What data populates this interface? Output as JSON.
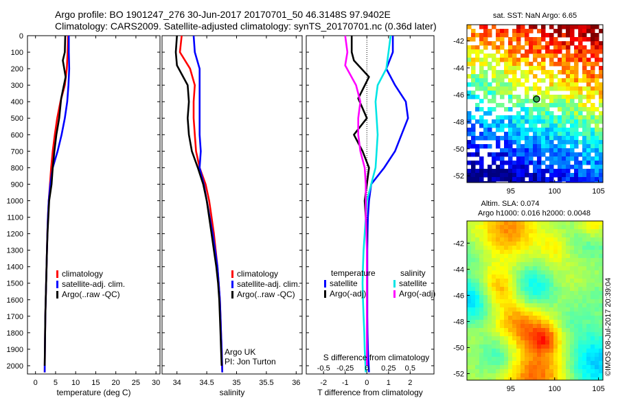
{
  "header": {
    "title_line1": "Argo profile: BO 1901247_276 30-Jun-2017 20170701_50 46.3148S 97.9402E",
    "title_line2": "Climatology: CARS2009. Satellite-adjusted climatology: synTS_20170701.nc (0.36d later)"
  },
  "colors": {
    "climatology": "#ff0000",
    "satellite": "#0000ff",
    "argo": "#000000",
    "sal_satellite": "#00e5e5",
    "sal_argo": "#ff00ff"
  },
  "chart_data": [
    {
      "type": "line",
      "name": "temperature-profile",
      "xlabel": "temperature (deg C)",
      "ylabel": "",
      "xlim": [
        -2,
        31
      ],
      "ylim": [
        2050,
        0
      ],
      "xticks": [
        0,
        5,
        10,
        15,
        20,
        25,
        30
      ],
      "yticks": [
        0,
        100,
        200,
        300,
        400,
        500,
        600,
        700,
        800,
        900,
        1000,
        1100,
        1200,
        1300,
        1400,
        1500,
        1600,
        1700,
        1800,
        1900,
        2000
      ],
      "legend": [
        "climatology",
        "satellite-adj. clim.",
        "Argo(..raw -QC)"
      ],
      "legend_position": "lower-middle",
      "series": [
        {
          "name": "climatology",
          "color": "#ff0000",
          "x": [
            8.1,
            8.0,
            7.8,
            7.3,
            6.2,
            5.4,
            4.8,
            4.3,
            3.9,
            3.6,
            3.3,
            3.1,
            2.95,
            2.85,
            2.75,
            2.65,
            2.55,
            2.45,
            2.4,
            2.35,
            2.3
          ],
          "y": [
            0,
            100,
            200,
            300,
            400,
            500,
            600,
            700,
            800,
            900,
            1000,
            1100,
            1200,
            1300,
            1400,
            1500,
            1600,
            1700,
            1800,
            1900,
            2040
          ]
        },
        {
          "name": "satellite-adj. clim.",
          "color": "#0000ff",
          "x": [
            8.3,
            8.3,
            8.4,
            8.2,
            7.9,
            7.3,
            6.5,
            5.5,
            4.3,
            3.7,
            3.3,
            3.1,
            2.95,
            2.85,
            2.75,
            2.65,
            2.55,
            2.45,
            2.4,
            2.35,
            2.3
          ],
          "y": [
            0,
            100,
            200,
            300,
            400,
            500,
            600,
            700,
            800,
            900,
            1000,
            1100,
            1200,
            1300,
            1400,
            1500,
            1600,
            1700,
            1800,
            1900,
            2040
          ]
        },
        {
          "name": "Argo(..raw -QC)",
          "color": "#000000",
          "x": [
            7.4,
            7.3,
            6.8,
            7.5,
            6.4,
            5.9,
            5.2,
            4.7,
            4.3,
            4.0,
            3.4,
            3.2,
            3.0,
            2.85,
            2.75,
            2.65,
            2.55,
            2.45,
            2.4,
            2.35,
            2.3
          ],
          "y": [
            0,
            100,
            150,
            250,
            380,
            500,
            600,
            700,
            800,
            900,
            1000,
            1100,
            1200,
            1300,
            1400,
            1500,
            1600,
            1700,
            1800,
            1900,
            2000
          ]
        }
      ]
    },
    {
      "type": "line",
      "name": "salinity-profile",
      "xlabel": "salinity",
      "ylabel": "",
      "xlim": [
        33.75,
        36.1
      ],
      "ylim": [
        2050,
        0
      ],
      "xticks": [
        34,
        34.5,
        35,
        35.5,
        36
      ],
      "legend": [
        "climatology",
        "satellite-adj. clim.",
        "Argo(..raw -QC)"
      ],
      "legend_position": "lower-right",
      "annotations": [
        "Argo UK",
        "PI: Jon Turton"
      ],
      "series": [
        {
          "name": "climatology",
          "color": "#ff0000",
          "x": [
            34.08,
            34.05,
            34.22,
            34.3,
            34.28,
            34.28,
            34.3,
            34.32,
            34.38,
            34.48,
            34.54,
            34.58,
            34.62,
            34.65,
            34.68,
            34.7,
            34.72,
            34.73,
            34.74,
            34.75,
            34.76
          ],
          "y": [
            0,
            100,
            200,
            300,
            400,
            500,
            600,
            700,
            800,
            900,
            1000,
            1100,
            1200,
            1300,
            1400,
            1500,
            1600,
            1700,
            1800,
            1900,
            2040
          ]
        },
        {
          "name": "satellite-adj. clim.",
          "color": "#0000ff",
          "x": [
            34.28,
            34.3,
            34.38,
            34.38,
            34.38,
            34.38,
            34.38,
            34.4,
            34.38,
            34.45,
            34.5,
            34.55,
            34.6,
            34.64,
            34.68,
            34.7,
            34.72,
            34.73,
            34.74,
            34.75,
            34.76
          ],
          "y": [
            0,
            100,
            200,
            300,
            400,
            500,
            600,
            700,
            800,
            900,
            1000,
            1100,
            1200,
            1300,
            1400,
            1500,
            1600,
            1700,
            1800,
            1900,
            2040
          ]
        },
        {
          "name": "Argo(..raw -QC)",
          "color": "#000000",
          "x": [
            34.0,
            33.98,
            34.0,
            34.18,
            34.2,
            34.18,
            34.2,
            34.25,
            34.35,
            34.44,
            34.5,
            34.54,
            34.58,
            34.62,
            34.66,
            34.69,
            34.71,
            34.72,
            34.73,
            34.74,
            34.75
          ],
          "y": [
            0,
            100,
            180,
            300,
            400,
            500,
            600,
            700,
            800,
            900,
            1000,
            1100,
            1200,
            1300,
            1400,
            1500,
            1600,
            1700,
            1800,
            1900,
            2000
          ]
        }
      ]
    },
    {
      "type": "line",
      "name": "difference-from-climatology",
      "xlabel": "T difference from climatology",
      "xlabel_top": "S difference from climatology",
      "xlim": [
        -2.8,
        3.1
      ],
      "ylim": [
        2050,
        0
      ],
      "xticks": [
        -2,
        -1,
        0,
        1,
        2
      ],
      "xticks_top": [
        -0.5,
        -0.25,
        0,
        0.25,
        0.5
      ],
      "xticks_top_labels": [
        "-0.5",
        "-0.25",
        "0",
        "0.25",
        "0.5"
      ],
      "legend_headers": [
        "temperature",
        "salinity"
      ],
      "legend": [
        "satellite",
        "Argo(-adj)",
        "satellite",
        "Argo(-adj)"
      ],
      "legend_position": "lower-middle",
      "series": [
        {
          "name": "temperature satellite",
          "color": "#0000ff",
          "x": [
            1.2,
            1.2,
            0.9,
            1.3,
            1.8,
            1.9,
            1.6,
            1.3,
            0.8,
            0.2,
            0.1,
            0.05,
            0.03,
            0.02,
            0.02,
            0.02,
            0.02,
            0.02,
            0.03,
            0.05,
            0.1
          ],
          "y": [
            0,
            100,
            200,
            300,
            400,
            500,
            600,
            700,
            800,
            900,
            1000,
            1100,
            1200,
            1300,
            1400,
            1500,
            1600,
            1700,
            1800,
            1900,
            2040
          ]
        },
        {
          "name": "temperature Argo(-adj)",
          "color": "#000000",
          "x": [
            -0.7,
            -0.7,
            -0.6,
            0.1,
            -0.4,
            0.0,
            -0.6,
            -0.2,
            0.1,
            0.0,
            -0.1,
            -0.05,
            0.0,
            0.0,
            0.0,
            0.0,
            0.0,
            0.0,
            0.0,
            0.0,
            0.0
          ],
          "y": [
            0,
            100,
            150,
            250,
            380,
            500,
            600,
            700,
            800,
            900,
            1000,
            1100,
            1200,
            1300,
            1400,
            1500,
            1600,
            1700,
            1800,
            1900,
            2000
          ]
        },
        {
          "name": "salinity satellite",
          "color": "#00e5e5",
          "x": [
            1.1,
            1.0,
            0.9,
            0.5,
            0.4,
            0.45,
            0.5,
            0.45,
            0.4,
            0.2,
            0.0,
            -0.05,
            -0.1,
            -0.15,
            -0.18,
            -0.2,
            -0.18,
            -0.15,
            -0.12,
            -0.1,
            -0.05
          ],
          "y": [
            0,
            100,
            200,
            300,
            400,
            500,
            600,
            700,
            800,
            900,
            1000,
            1100,
            1200,
            1300,
            1400,
            1500,
            1600,
            1700,
            1800,
            1900,
            2040
          ]
        },
        {
          "name": "salinity Argo(-adj)",
          "color": "#ff00ff",
          "x": [
            -1.0,
            -0.9,
            -1.0,
            -0.5,
            -0.3,
            -0.4,
            -0.4,
            -0.3,
            -0.1,
            -0.05,
            -0.05,
            -0.05,
            -0.02,
            0.0,
            0.0,
            0.0,
            0.0,
            0.0,
            0.0,
            0.0,
            0.0
          ],
          "y": [
            0,
            100,
            180,
            300,
            400,
            500,
            600,
            700,
            800,
            900,
            1000,
            1100,
            1200,
            1300,
            1400,
            1500,
            1600,
            1700,
            1800,
            1900,
            2000
          ]
        }
      ]
    },
    {
      "type": "heatmap",
      "name": "sst-map",
      "title": "sat. SST: NaN Argo: 6.65",
      "xlim": [
        90,
        105.5
      ],
      "ylim": [
        -52.5,
        -40.8
      ],
      "xticks": [
        95,
        100,
        105
      ],
      "yticks": [
        -42,
        -44,
        -46,
        -48,
        -50,
        -52
      ],
      "argo_marker": {
        "lon": 97.94,
        "lat": -46.31
      }
    },
    {
      "type": "heatmap",
      "name": "sla-map",
      "title": "Altim. SLA: 0.074",
      "subtitle": "Argo h1000: 0.016 h2000: 0.0048",
      "xlim": [
        90,
        105.5
      ],
      "ylim": [
        -52.5,
        -40.3
      ],
      "xticks": [
        95,
        100,
        105
      ],
      "yticks": [
        -42,
        -44,
        -46,
        -48,
        -50,
        -52
      ]
    }
  ],
  "footer": {
    "stamp": "©IMOS 08-Jul-2017 20:39:04"
  }
}
